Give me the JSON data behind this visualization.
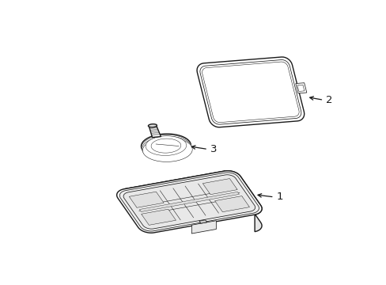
{
  "bg_color": "#ffffff",
  "line_color": "#1a1a1a",
  "figsize": [
    4.89,
    3.6
  ],
  "dpi": 100,
  "labels": [
    "1",
    "2",
    "3"
  ]
}
